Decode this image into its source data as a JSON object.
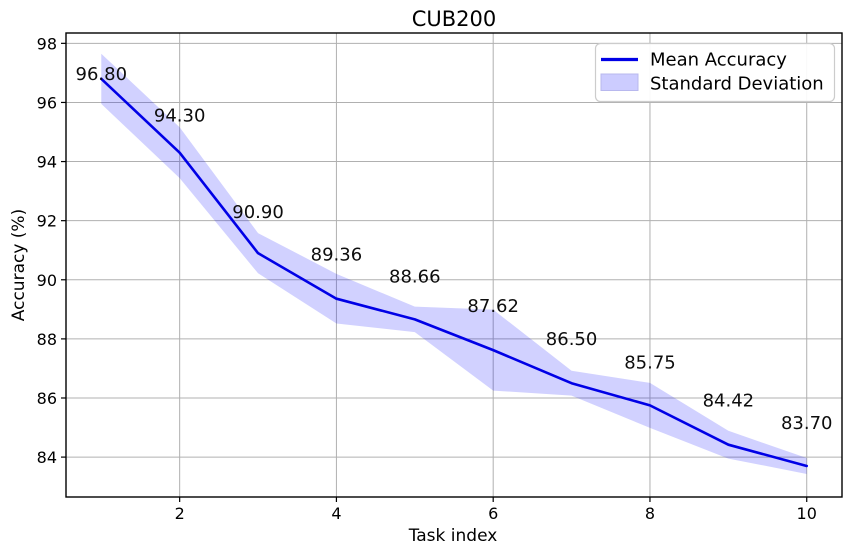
{
  "chart_data": {
    "type": "line",
    "title": "CUB200",
    "xlabel": "Task index",
    "ylabel": "Accuracy (%)",
    "x": [
      1,
      2,
      3,
      4,
      5,
      6,
      7,
      8,
      9,
      10
    ],
    "series": [
      {
        "name": "Mean Accuracy",
        "values": [
          96.8,
          94.3,
          90.9,
          89.36,
          88.66,
          87.62,
          86.5,
          85.75,
          84.42,
          83.7
        ],
        "color": "#0000e6"
      }
    ],
    "band": {
      "name": "Standard Deviation",
      "std": [
        0.85,
        0.86,
        0.68,
        0.84,
        0.43,
        1.37,
        0.42,
        0.76,
        0.47,
        0.27
      ],
      "color": "#0000ff",
      "opacity": 0.18
    },
    "point_labels": [
      "96.80",
      "94.30",
      "90.90",
      "89.36",
      "88.66",
      "87.62",
      "86.50",
      "85.75",
      "84.42",
      "83.70"
    ],
    "xticks": [
      2,
      4,
      6,
      8,
      10
    ],
    "yticks": [
      84,
      86,
      88,
      90,
      92,
      94,
      96,
      98
    ],
    "xlim": [
      0.55,
      10.45
    ],
    "ylim": [
      82.65,
      98.35
    ],
    "grid": true,
    "grid_color": "#b0b0b0",
    "axis_color": "#000000",
    "legend": {
      "position": "upper right",
      "entries": [
        "Mean Accuracy",
        "Standard Deviation"
      ]
    }
  }
}
